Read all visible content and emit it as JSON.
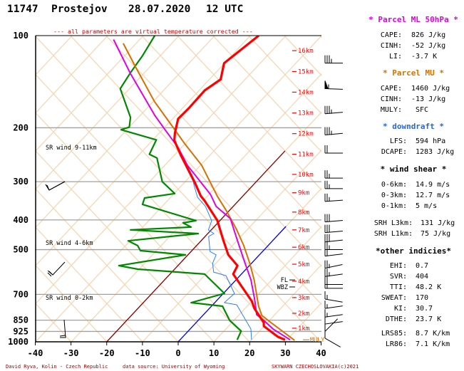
{
  "header": {
    "station_id": "11747",
    "station_name": "Prostejov",
    "date": "28.07.2020",
    "time": "12 UTC",
    "subtitle": "--- all parameters are virtual temperature corrected ---"
  },
  "footer": {
    "author": "David Ryva, Kolin - Czech Republic",
    "source": "data source: University of Wyoming",
    "copyright": "SKYWARN CZECHOSLOVAKIA(c)2021"
  },
  "colors": {
    "temperature": "#ff0000",
    "dewpoint": "#008800",
    "wetbulb": "#2a7fff",
    "parcel_ml": "#e000e0",
    "parcel_mu": "#d87000",
    "grid_bg": "#f9d3ad",
    "isobar": "#a0a0a0",
    "isotherm_m20": "#8b0000",
    "isotherm_0": "#0000ee",
    "height": "#ff0000",
    "footer": "#a00000"
  },
  "chart_data": {
    "type": "line",
    "subtype": "skew-T log-p",
    "xlim": [
      -40,
      40
    ],
    "ylim": [
      1000,
      100
    ],
    "x_ticks": [
      -40,
      -30,
      -20,
      -10,
      0,
      10,
      20,
      30,
      40
    ],
    "y_ticks": [
      100,
      200,
      300,
      400,
      500,
      700,
      850,
      925,
      1000
    ],
    "isobars": [
      200,
      300,
      400,
      500,
      700,
      850,
      925
    ],
    "series": [
      {
        "name": "temperature",
        "points": [
          [
            985,
            29.4
          ],
          [
            963,
            26.6
          ],
          [
            889,
            19.9
          ],
          [
            865,
            18.9
          ],
          [
            778,
            12.6
          ],
          [
            737,
            10.0
          ],
          [
            601,
            -2.3
          ],
          [
            564,
            -3.3
          ],
          [
            520,
            -8.7
          ],
          [
            465,
            -14.0
          ],
          [
            402,
            -20.7
          ],
          [
            346,
            -29.5
          ],
          [
            334,
            -31.8
          ],
          [
            300,
            -37.3
          ],
          [
            246,
            -48.0
          ],
          [
            220,
            -53.7
          ],
          [
            208,
            -55.5
          ],
          [
            187,
            -58.3
          ],
          [
            173,
            -58.1
          ],
          [
            151,
            -58.3
          ],
          [
            139,
            -56.7
          ],
          [
            123,
            -60.0
          ],
          [
            100,
            -57.5
          ]
        ]
      },
      {
        "name": "dewpoint",
        "points": [
          [
            985,
            16.0
          ],
          [
            922,
            14.8
          ],
          [
            851,
            8.8
          ],
          [
            765,
            3.1
          ],
          [
            745,
            -6.6
          ],
          [
            695,
            0.3
          ],
          [
            601,
            -10.3
          ],
          [
            579,
            -30.3
          ],
          [
            564,
            -36.5
          ],
          [
            520,
            -20.7
          ],
          [
            504,
            -34.4
          ],
          [
            485,
            -36.5
          ],
          [
            468,
            -40.4
          ],
          [
            443,
            -22.7
          ],
          [
            431,
            -42.6
          ],
          [
            422,
            -26.4
          ],
          [
            409,
            -29.7
          ],
          [
            402,
            -26.7
          ],
          [
            356,
            -45.9
          ],
          [
            339,
            -47.0
          ],
          [
            328,
            -39.7
          ],
          [
            300,
            -46.3
          ],
          [
            251,
            -54.0
          ],
          [
            244,
            -57.1
          ],
          [
            219,
            -58.9
          ],
          [
            203,
            -71.4
          ],
          [
            199,
            -69.8
          ],
          [
            185,
            -72.0
          ],
          [
            149,
            -82.4
          ],
          [
            132,
            -83.7
          ],
          [
            116,
            -84.8
          ],
          [
            100,
            -86.6
          ]
        ]
      },
      {
        "name": "wetbulb",
        "points": [
          [
            985,
            20.0
          ],
          [
            908,
            17.0
          ],
          [
            757,
            6.7
          ],
          [
            745,
            2.7
          ],
          [
            695,
            3.1
          ],
          [
            608,
            -3.9
          ],
          [
            592,
            -8.3
          ],
          [
            554,
            -10.9
          ],
          [
            520,
            -12.1
          ],
          [
            507,
            -14.7
          ],
          [
            453,
            -19.0
          ],
          [
            443,
            -18.3
          ],
          [
            431,
            -20.8
          ],
          [
            402,
            -22.3
          ],
          [
            361,
            -27.8
          ],
          [
            337,
            -32.4
          ],
          [
            308,
            -36.5
          ],
          [
            300,
            -37.6
          ],
          [
            246,
            -48.2
          ],
          [
            220,
            -53.8
          ],
          [
            208,
            -55.6
          ],
          [
            187,
            -58.4
          ],
          [
            173,
            -58.2
          ],
          [
            151,
            -58.4
          ],
          [
            139,
            -56.8
          ],
          [
            123,
            -60.1
          ],
          [
            100,
            -57.6
          ]
        ]
      },
      {
        "name": "parcel_ml",
        "points": [
          [
            985,
            30.8
          ],
          [
            908,
            23.2
          ],
          [
            843,
            17.6
          ],
          [
            816,
            14.9
          ],
          [
            725,
            10.2
          ],
          [
            628,
            4.2
          ],
          [
            546,
            -2.5
          ],
          [
            460,
            -10.6
          ],
          [
            396,
            -17.6
          ],
          [
            361,
            -24.8
          ],
          [
            330,
            -29.5
          ],
          [
            265,
            -43.6
          ],
          [
            232,
            -50.8
          ],
          [
            203,
            -59.1
          ],
          [
            182,
            -65.8
          ],
          [
            133,
            -83.5
          ],
          [
            103,
            -97.1
          ]
        ]
      },
      {
        "name": "parcel_mu",
        "points": [
          [
            989,
            32.2
          ],
          [
            865,
            20.9
          ],
          [
            820,
            16.5
          ],
          [
            765,
            13.2
          ],
          [
            628,
            5.1
          ],
          [
            554,
            -0.5
          ],
          [
            485,
            -6.8
          ],
          [
            429,
            -13.1
          ],
          [
            375,
            -20.5
          ],
          [
            334,
            -27.2
          ],
          [
            265,
            -39.6
          ],
          [
            226,
            -49.8
          ],
          [
            199,
            -57.6
          ],
          [
            164,
            -69.5
          ],
          [
            127,
            -83.6
          ],
          [
            106,
            -93.4
          ]
        ]
      }
    ],
    "isotherms": [
      {
        "T": -20,
        "p_top": 238
      },
      {
        "T": 0,
        "p_top": 420
      }
    ],
    "height_levels": [
      {
        "label": "16km",
        "p": 112
      },
      {
        "label": "15km",
        "p": 131
      },
      {
        "label": "14km",
        "p": 153
      },
      {
        "label": "13km",
        "p": 179
      },
      {
        "label": "12km",
        "p": 209
      },
      {
        "label": "11km",
        "p": 244
      },
      {
        "label": "10km",
        "p": 284
      },
      {
        "label": "9km",
        "p": 326
      },
      {
        "label": "8km",
        "p": 377
      },
      {
        "label": "7km",
        "p": 431
      },
      {
        "label": "6km",
        "p": 491
      },
      {
        "label": "5km",
        "p": 558
      },
      {
        "label": "4km",
        "p": 634
      },
      {
        "label": "3km",
        "p": 717
      },
      {
        "label": "2km",
        "p": 807
      },
      {
        "label": "1km",
        "p": 903
      }
    ],
    "level_markers": [
      {
        "label": "FL",
        "p": 628
      },
      {
        "label": "WBZ",
        "p": 662
      },
      {
        "label": "MULY",
        "p": 985
      }
    ],
    "sr_wind_labels": [
      {
        "label": "SR wind 9-11km",
        "p": 232
      },
      {
        "label": "SR wind 4-6km",
        "p": 475
      },
      {
        "label": "SR wind 0-2km",
        "p": 717
      }
    ],
    "winds": [
      {
        "p": 123,
        "speed_kt": 35,
        "dir": 270
      },
      {
        "p": 149,
        "speed_kt": 55,
        "dir": 272
      },
      {
        "p": 180,
        "speed_kt": 35,
        "dir": 265
      },
      {
        "p": 211,
        "speed_kt": 35,
        "dir": 265
      },
      {
        "p": 242,
        "speed_kt": 20,
        "dir": 270
      },
      {
        "p": 292,
        "speed_kt": 25,
        "dir": 270
      },
      {
        "p": 316,
        "speed_kt": 25,
        "dir": 270
      },
      {
        "p": 348,
        "speed_kt": 25,
        "dir": 266
      },
      {
        "p": 406,
        "speed_kt": 30,
        "dir": 265
      },
      {
        "p": 440,
        "speed_kt": 30,
        "dir": 265
      },
      {
        "p": 472,
        "speed_kt": 30,
        "dir": 264
      },
      {
        "p": 500,
        "speed_kt": 25,
        "dir": 270
      },
      {
        "p": 525,
        "speed_kt": 20,
        "dir": 263
      },
      {
        "p": 575,
        "speed_kt": 25,
        "dir": 258
      },
      {
        "p": 612,
        "speed_kt": 25,
        "dir": 262
      },
      {
        "p": 650,
        "speed_kt": 20,
        "dir": 270
      },
      {
        "p": 669,
        "speed_kt": 20,
        "dir": 270
      },
      {
        "p": 725,
        "speed_kt": 15,
        "dir": 280
      },
      {
        "p": 778,
        "speed_kt": 15,
        "dir": 262
      },
      {
        "p": 830,
        "speed_kt": 15,
        "dir": 262
      },
      {
        "p": 875,
        "speed_kt": 10,
        "dir": 262
      },
      {
        "p": 925,
        "speed_kt": 10,
        "dir": 225
      },
      {
        "p": 973,
        "speed_kt": 10,
        "dir": 300
      }
    ]
  },
  "panel": {
    "ml": {
      "title": "* Parcel ML 50hPa *",
      "rows": [
        [
          "CAPE:",
          "826 J/kg"
        ],
        [
          "CINH:",
          "-52 J/kg"
        ],
        [
          "LI:",
          "-3.7 K"
        ]
      ]
    },
    "mu": {
      "title": "* Parcel MU *",
      "rows": [
        [
          "CAPE:",
          "1460 J/kg"
        ],
        [
          "CINH:",
          "-13 J/kg"
        ],
        [
          "MULY:",
          " SFC"
        ]
      ]
    },
    "dd": {
      "title": "* downdraft *",
      "rows": [
        [
          "LFS:",
          "594 hPa"
        ],
        [
          "DCAPE:",
          "1283 J/kg"
        ]
      ]
    },
    "ws": {
      "title": "* wind shear *",
      "rows": [
        [
          "0-6km:",
          "14.9 m/s"
        ],
        [
          "0-3km:",
          "12.7 m/s"
        ],
        [
          "0-1km:",
          "5 m/s"
        ]
      ]
    },
    "srh": {
      "rows": [
        [
          "SRH L3km:",
          "131 J/kg"
        ],
        [
          "SRH L1km:",
          "75 J/kg"
        ]
      ]
    },
    "oi": {
      "title": "*other indicies*",
      "rows": [
        [
          "EHI:",
          "0.7"
        ],
        [
          "SVR:",
          "404"
        ],
        [
          "TTI:",
          "48.2 K"
        ],
        [
          "SWEAT:",
          "170"
        ],
        [
          "KI:",
          "30.7"
        ],
        [
          "DTHE:",
          "23.7 K"
        ]
      ]
    },
    "lr": {
      "rows": [
        [
          "LRS85:",
          "8.7 K/km"
        ],
        [
          "LR86:",
          "7.1 K/km"
        ]
      ]
    }
  }
}
